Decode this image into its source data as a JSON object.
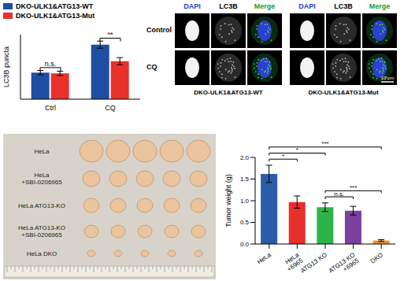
{
  "chart_data": [
    {
      "type": "bar",
      "y_label": "LC3B puncta",
      "categories": [
        "Ctrl",
        "CQ"
      ],
      "series": [
        {
          "name": "DKO-ULK1&ATG13-WT",
          "color": "#1f4ea3",
          "values": [
            18.5,
            38
          ],
          "errors": [
            1.5,
            2.5
          ]
        },
        {
          "name": "DKO-ULK1&ATG13-Mut",
          "color": "#e8312b",
          "values": [
            18,
            26.5
          ],
          "errors": [
            1.5,
            2.5
          ]
        }
      ],
      "ylim": [
        0,
        45
      ],
      "tick_labels": "x",
      "legend": "top-left",
      "annotations": [
        {
          "text": "n.s.",
          "category": "Ctrl"
        },
        {
          "text": "**",
          "category": "CQ"
        }
      ]
    },
    {
      "type": "bar",
      "y_label": "Tumor weight (g)",
      "categories": [
        "HeLa",
        "HeLa +6965",
        "ATG13 KO",
        "ATG13 KO +6965",
        "DKO"
      ],
      "values": [
        1.62,
        0.97,
        0.85,
        0.77,
        0.08
      ],
      "errors": [
        0.2,
        0.14,
        0.1,
        0.1,
        0.02
      ],
      "colors": [
        "#2a5caa",
        "#e8302a",
        "#2db34a",
        "#7b3f9e",
        "#f5901e"
      ],
      "ylim": [
        0,
        2
      ],
      "yticks": [
        {
          "value": 0,
          "label": "0.0"
        },
        {
          "value": 0.5,
          "label": "0.5"
        },
        {
          "value": 1,
          "label": "1.0"
        },
        {
          "value": 1.5,
          "label": "1.5"
        },
        {
          "value": 2,
          "label": "2.0"
        }
      ],
      "annotations": [
        {
          "text": "*",
          "from": "HeLa",
          "to": "HeLa +6965"
        },
        {
          "text": "*",
          "from": "HeLa",
          "to": "ATG13 KO"
        },
        {
          "text": "***",
          "from": "HeLa",
          "to": "DKO"
        },
        {
          "text": "n.s.",
          "from": "ATG13 KO",
          "to": "ATG13 KO +6965"
        },
        {
          "text": "***",
          "from": "ATG13 KO",
          "to": "DKO"
        }
      ]
    }
  ],
  "images": {
    "microscopy": {
      "channels": [
        "DAPI",
        "LC3B",
        "Merge"
      ],
      "rows": [
        "Control",
        "CQ"
      ],
      "groups": [
        "DKO-ULK1&ATG13-WT",
        "DKO-ULK1&ATG13-Mut"
      ],
      "scale_bar": "10 μm"
    },
    "tumors": {
      "rows": [
        "HeLa",
        "HeLa +SBI-0206965",
        "HeLa ATG13-KO",
        "HeLa ATG13-KO +SBI-0206965",
        "HeLa DKO"
      ]
    }
  }
}
